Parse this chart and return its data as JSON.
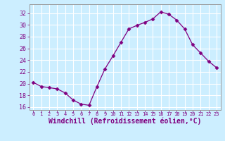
{
  "x": [
    0,
    1,
    2,
    3,
    4,
    5,
    6,
    7,
    8,
    9,
    10,
    11,
    12,
    13,
    14,
    15,
    16,
    17,
    18,
    19,
    20,
    21,
    22,
    23
  ],
  "y": [
    20.2,
    19.5,
    19.3,
    19.1,
    18.4,
    17.2,
    16.5,
    16.3,
    19.5,
    22.5,
    24.7,
    27.0,
    29.3,
    29.9,
    30.4,
    31.0,
    32.2,
    31.8,
    30.8,
    29.3,
    26.6,
    25.2,
    23.8,
    22.7
  ],
  "line_color": "#800080",
  "marker": "D",
  "marker_size": 2.5,
  "bg_color": "#cceeff",
  "grid_color": "#ffffff",
  "xlabel": "Windchill (Refroidissement éolien,°C)",
  "xlabel_fontsize": 7,
  "xtick_labels": [
    "0",
    "1",
    "2",
    "3",
    "4",
    "5",
    "6",
    "7",
    "8",
    "9",
    "10",
    "11",
    "12",
    "13",
    "14",
    "15",
    "16",
    "17",
    "18",
    "19",
    "20",
    "21",
    "22",
    "23"
  ],
  "ylim": [
    15.5,
    33.5
  ],
  "yticks": [
    16,
    18,
    20,
    22,
    24,
    26,
    28,
    30,
    32
  ],
  "xlim": [
    -0.5,
    23.5
  ],
  "tick_color": "#800080",
  "axis_color": "#999999"
}
